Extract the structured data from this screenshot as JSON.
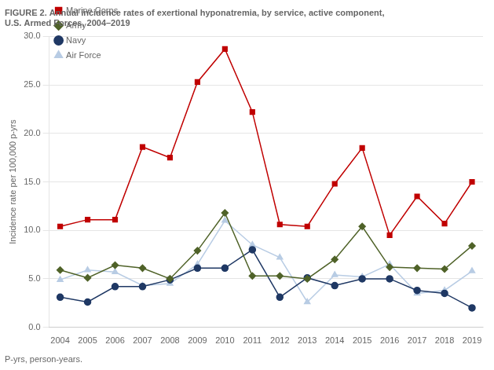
{
  "chart_data": {
    "type": "line",
    "title": [
      "FIGURE 2. Annual incidence rates of exertional hyponatremia, by service, active component,",
      "U.S. Armed Forces, 2004–2019"
    ],
    "ylabel": "Incidence rate per 100,000 p-yrs",
    "annotations": [
      "P-yrs, person-years."
    ],
    "x": [
      2004,
      2005,
      2006,
      2007,
      2008,
      2009,
      2010,
      2011,
      2012,
      2013,
      2014,
      2015,
      2016,
      2017,
      2018,
      2019
    ],
    "series": [
      {
        "name": "Marine Corps",
        "color": "#c00000",
        "marker": "square",
        "values": [
          10.4,
          11.1,
          11.1,
          18.6,
          17.5,
          25.3,
          28.7,
          22.2,
          10.6,
          10.4,
          14.8,
          18.5,
          9.5,
          13.5,
          10.7,
          15.0
        ]
      },
      {
        "name": "Army",
        "color": "#4f6228",
        "marker": "diamond",
        "values": [
          5.9,
          5.1,
          6.4,
          6.1,
          5.0,
          7.9,
          11.8,
          5.3,
          5.3,
          5.0,
          7.0,
          10.4,
          6.2,
          6.1,
          6.0,
          8.4
        ]
      },
      {
        "name": "Navy",
        "color": "#1f3864",
        "marker": "circle",
        "values": [
          3.1,
          2.6,
          4.2,
          4.2,
          4.9,
          6.1,
          6.1,
          8.0,
          3.1,
          5.1,
          4.3,
          5.0,
          5.0,
          3.8,
          3.5,
          2.0
        ]
      },
      {
        "name": "Air Force",
        "color": "#b8cce4",
        "marker": "triangle",
        "values": [
          4.9,
          5.9,
          5.7,
          4.3,
          4.5,
          6.5,
          11.0,
          8.5,
          7.2,
          2.6,
          5.4,
          5.2,
          6.5,
          3.5,
          3.8,
          5.8
        ]
      }
    ],
    "xlim": [
      2003.6,
      2019.4
    ],
    "xticks": [
      2004,
      2005,
      2006,
      2007,
      2008,
      2009,
      2010,
      2011,
      2012,
      2013,
      2014,
      2015,
      2016,
      2017,
      2018,
      2019
    ],
    "ylim": [
      0.0,
      30.0
    ],
    "yticks": [
      {
        "value": 0.0,
        "label": "0.0"
      },
      {
        "value": 5.0,
        "label": "5.0"
      },
      {
        "value": 10.0,
        "label": "10.0"
      },
      {
        "value": 15.0,
        "label": "15.0"
      },
      {
        "value": 20.0,
        "label": "20.0"
      },
      {
        "value": 25.0,
        "label": "25.0"
      },
      {
        "value": 30.0,
        "label": "30.0"
      }
    ],
    "grid": true,
    "legend": "upper left"
  }
}
